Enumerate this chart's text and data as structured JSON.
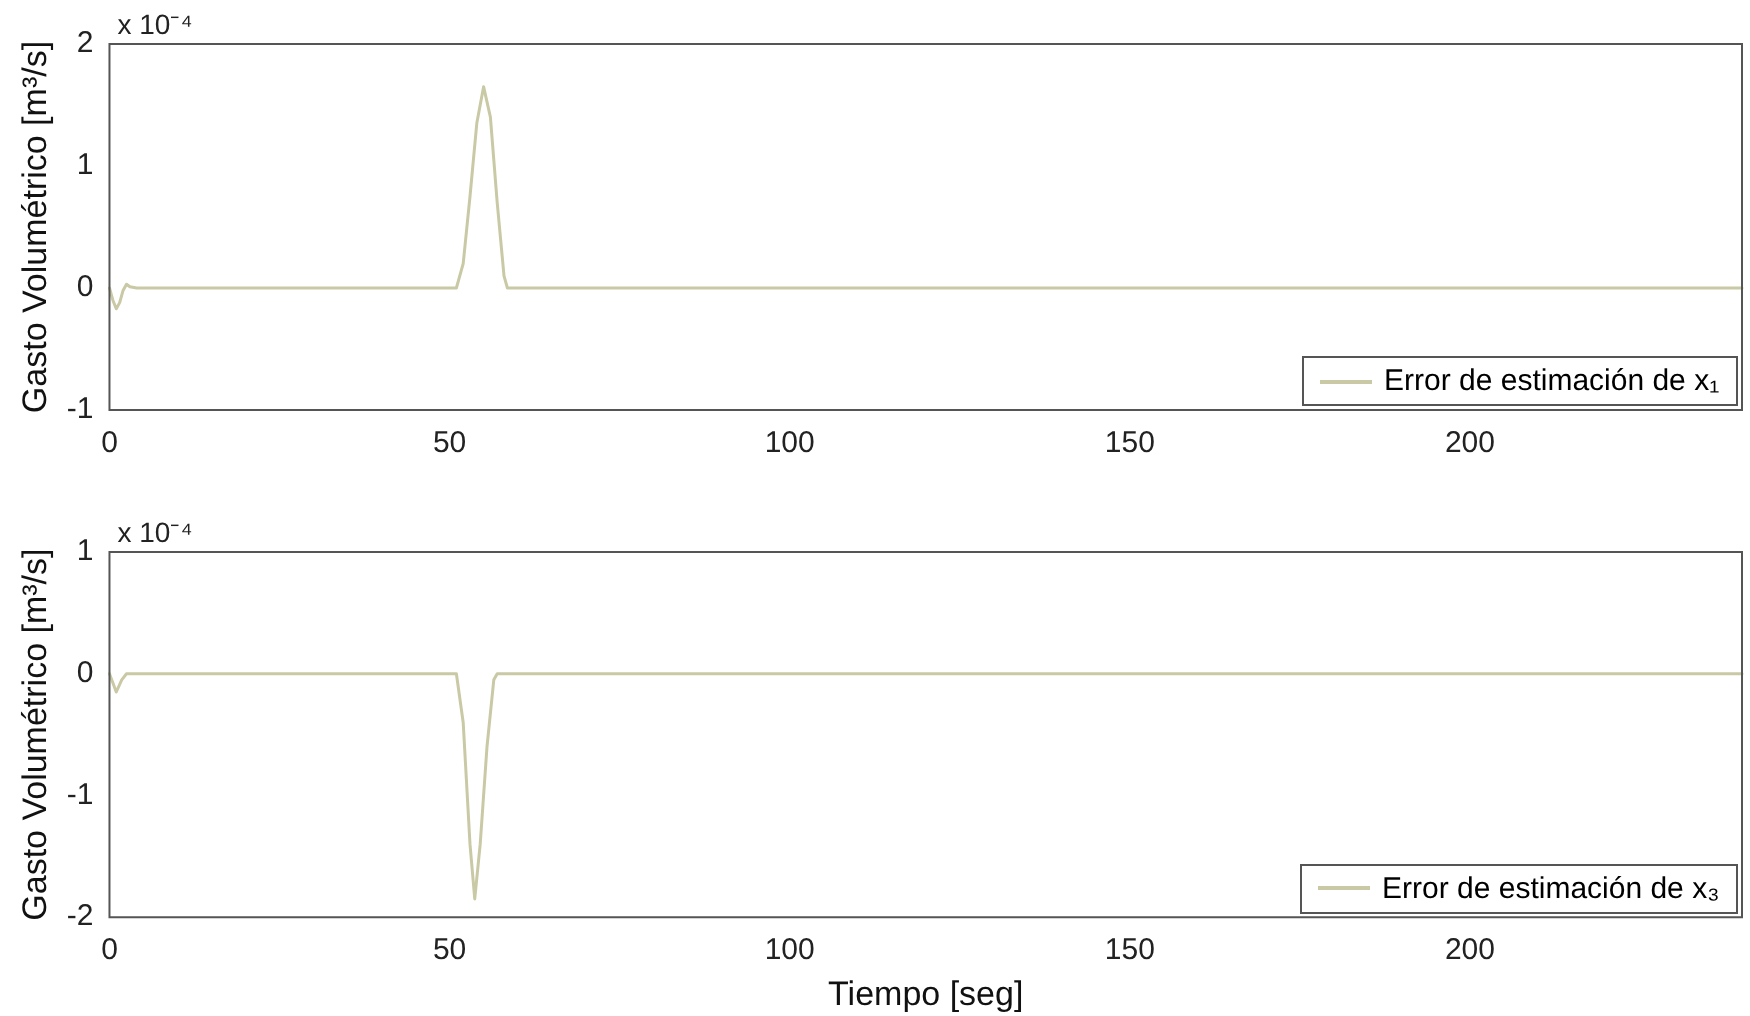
{
  "chart_data": [
    {
      "type": "line",
      "ylabel": "Gasto Volumétrico [m³/s]",
      "annotations": [
        "x 10⁻⁴"
      ],
      "legend": "bottom right",
      "grid": false,
      "xlim": [
        0,
        240
      ],
      "xticks": [
        0,
        50,
        100,
        150,
        200
      ],
      "ylim": [
        -1,
        2
      ],
      "yticks": [
        -1,
        0,
        1,
        2
      ],
      "series": [
        {
          "name": "Error de estimación de x₁",
          "color": "#c9c9a6",
          "x": [
            0,
            0.5,
            1,
            1.5,
            2,
            2.5,
            3,
            4,
            51,
            52,
            53,
            54,
            55,
            56,
            57,
            58,
            58.5,
            240
          ],
          "values": [
            0,
            -0.1,
            -0.17,
            -0.12,
            -0.02,
            0.03,
            0.01,
            0,
            0,
            0.2,
            0.75,
            1.35,
            1.65,
            1.4,
            0.7,
            0.1,
            0,
            0
          ]
        }
      ]
    },
    {
      "type": "line",
      "ylabel": "Gasto Volumétrico [m³/s]",
      "xlabel": "Tiempo [seg]",
      "annotations": [
        "x 10⁻⁴"
      ],
      "legend": "bottom right",
      "grid": false,
      "xlim": [
        0,
        240
      ],
      "xticks": [
        0,
        50,
        100,
        150,
        200
      ],
      "ylim": [
        -2,
        1
      ],
      "yticks": [
        -2,
        -1,
        0,
        1
      ],
      "series": [
        {
          "name": "Error de estimación de x₃",
          "color": "#c9c9a6",
          "x": [
            0,
            1,
            1.8,
            2.5,
            51,
            52,
            53,
            53.7,
            54.5,
            55.5,
            56.5,
            57,
            240
          ],
          "values": [
            0,
            -0.15,
            -0.05,
            0,
            0,
            -0.4,
            -1.4,
            -1.85,
            -1.4,
            -0.6,
            -0.05,
            0,
            0
          ]
        }
      ]
    }
  ]
}
